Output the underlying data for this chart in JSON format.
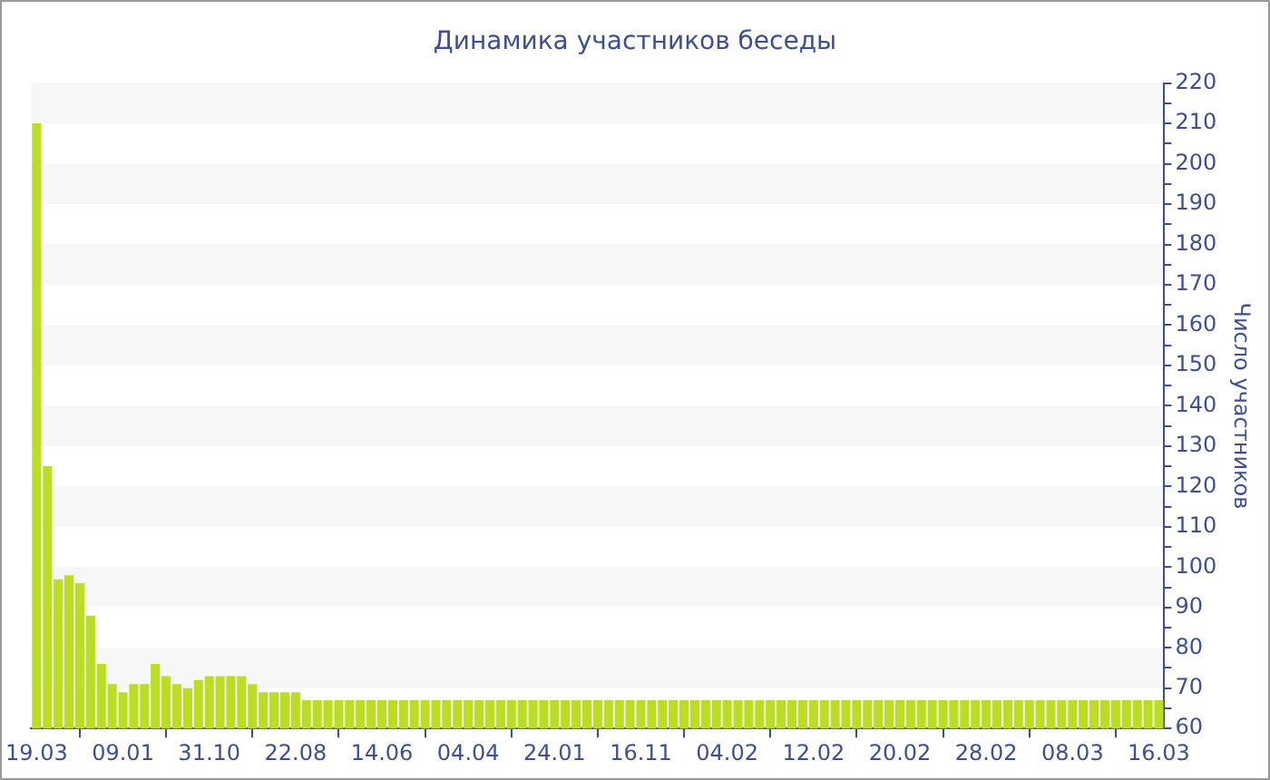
{
  "chart_data": {
    "type": "bar",
    "title": "Динамика участников беседы",
    "ylabel": "Число участников",
    "categories": [
      "19.03",
      null,
      null,
      null,
      null,
      null,
      null,
      null,
      "09.01",
      null,
      null,
      null,
      null,
      null,
      null,
      null,
      "31.10",
      null,
      null,
      null,
      null,
      null,
      null,
      null,
      "22.08",
      null,
      null,
      null,
      null,
      null,
      null,
      null,
      "14.06",
      null,
      null,
      null,
      null,
      null,
      null,
      null,
      "04.04",
      null,
      null,
      null,
      null,
      null,
      null,
      null,
      "24.01",
      null,
      null,
      null,
      null,
      null,
      null,
      null,
      "16.11",
      null,
      null,
      null,
      null,
      null,
      null,
      null,
      "04.02",
      null,
      null,
      null,
      null,
      null,
      null,
      null,
      "12.02",
      null,
      null,
      null,
      null,
      null,
      null,
      null,
      "20.02",
      null,
      null,
      null,
      null,
      null,
      null,
      null,
      "28.02",
      null,
      null,
      null,
      null,
      null,
      null,
      null,
      "08.03",
      null,
      null,
      null,
      null,
      null,
      null,
      null,
      "16.03"
    ],
    "values": [
      210,
      125,
      97,
      98,
      96,
      88,
      76,
      71,
      69,
      71,
      71,
      76,
      73,
      71,
      70,
      72,
      73,
      73,
      73,
      73,
      71,
      69,
      69,
      69,
      69,
      67,
      67,
      67,
      67,
      67,
      67,
      67,
      67,
      67,
      67,
      67,
      67,
      67,
      67,
      67,
      67,
      67,
      67,
      67,
      67,
      67,
      67,
      67,
      67,
      67,
      67,
      67,
      67,
      67,
      67,
      67,
      67,
      67,
      67,
      67,
      67,
      67,
      67,
      67,
      67,
      67,
      67,
      67,
      67,
      67,
      67,
      67,
      67,
      67,
      67,
      67,
      67,
      67,
      67,
      67,
      67,
      67,
      67,
      67,
      67,
      67,
      67,
      67,
      67,
      67,
      67,
      67,
      67,
      67,
      67,
      67,
      67,
      67,
      67,
      67,
      67,
      67,
      67,
      67,
      67
    ],
    "color": "#bbdd22",
    "ylim": [
      60,
      220
    ],
    "yticks": [
      60,
      {
        "value": 65,
        "label": null
      },
      70,
      {
        "value": 75,
        "label": null
      },
      80,
      {
        "value": 85,
        "label": null
      },
      90,
      {
        "value": 95,
        "label": null
      },
      100,
      {
        "value": 105,
        "label": null
      },
      110,
      {
        "value": 115,
        "label": null
      },
      120,
      {
        "value": 125,
        "label": null
      },
      130,
      {
        "value": 135,
        "label": null
      },
      140,
      {
        "value": 145,
        "label": null
      },
      150,
      {
        "value": 155,
        "label": null
      },
      160,
      {
        "value": 165,
        "label": null
      },
      170,
      {
        "value": 175,
        "label": null
      },
      180,
      {
        "value": 185,
        "label": null
      },
      190,
      {
        "value": 195,
        "label": null
      },
      200,
      {
        "value": 205,
        "label": null
      },
      210,
      {
        "value": 215,
        "label": null
      },
      220
    ],
    "bands": [
      {
        "axis": "y",
        "from": 210,
        "to": 220,
        "color": "#f7f7f7"
      },
      {
        "axis": "y",
        "from": 190,
        "to": 200,
        "color": "#f7f7f7"
      },
      {
        "axis": "y",
        "from": 170,
        "to": 180,
        "color": "#f7f7f7"
      },
      {
        "axis": "y",
        "from": 150,
        "to": 160,
        "color": "#f7f7f7"
      },
      {
        "axis": "y",
        "from": 130,
        "to": 140,
        "color": "#f7f7f7"
      },
      {
        "axis": "y",
        "from": 110,
        "to": 120,
        "color": "#f7f7f7"
      },
      {
        "axis": "y",
        "from": 90,
        "to": 100,
        "color": "#f7f7f7"
      },
      {
        "axis": "y",
        "from": 70,
        "to": 80,
        "color": "#f7f7f7"
      }
    ]
  }
}
